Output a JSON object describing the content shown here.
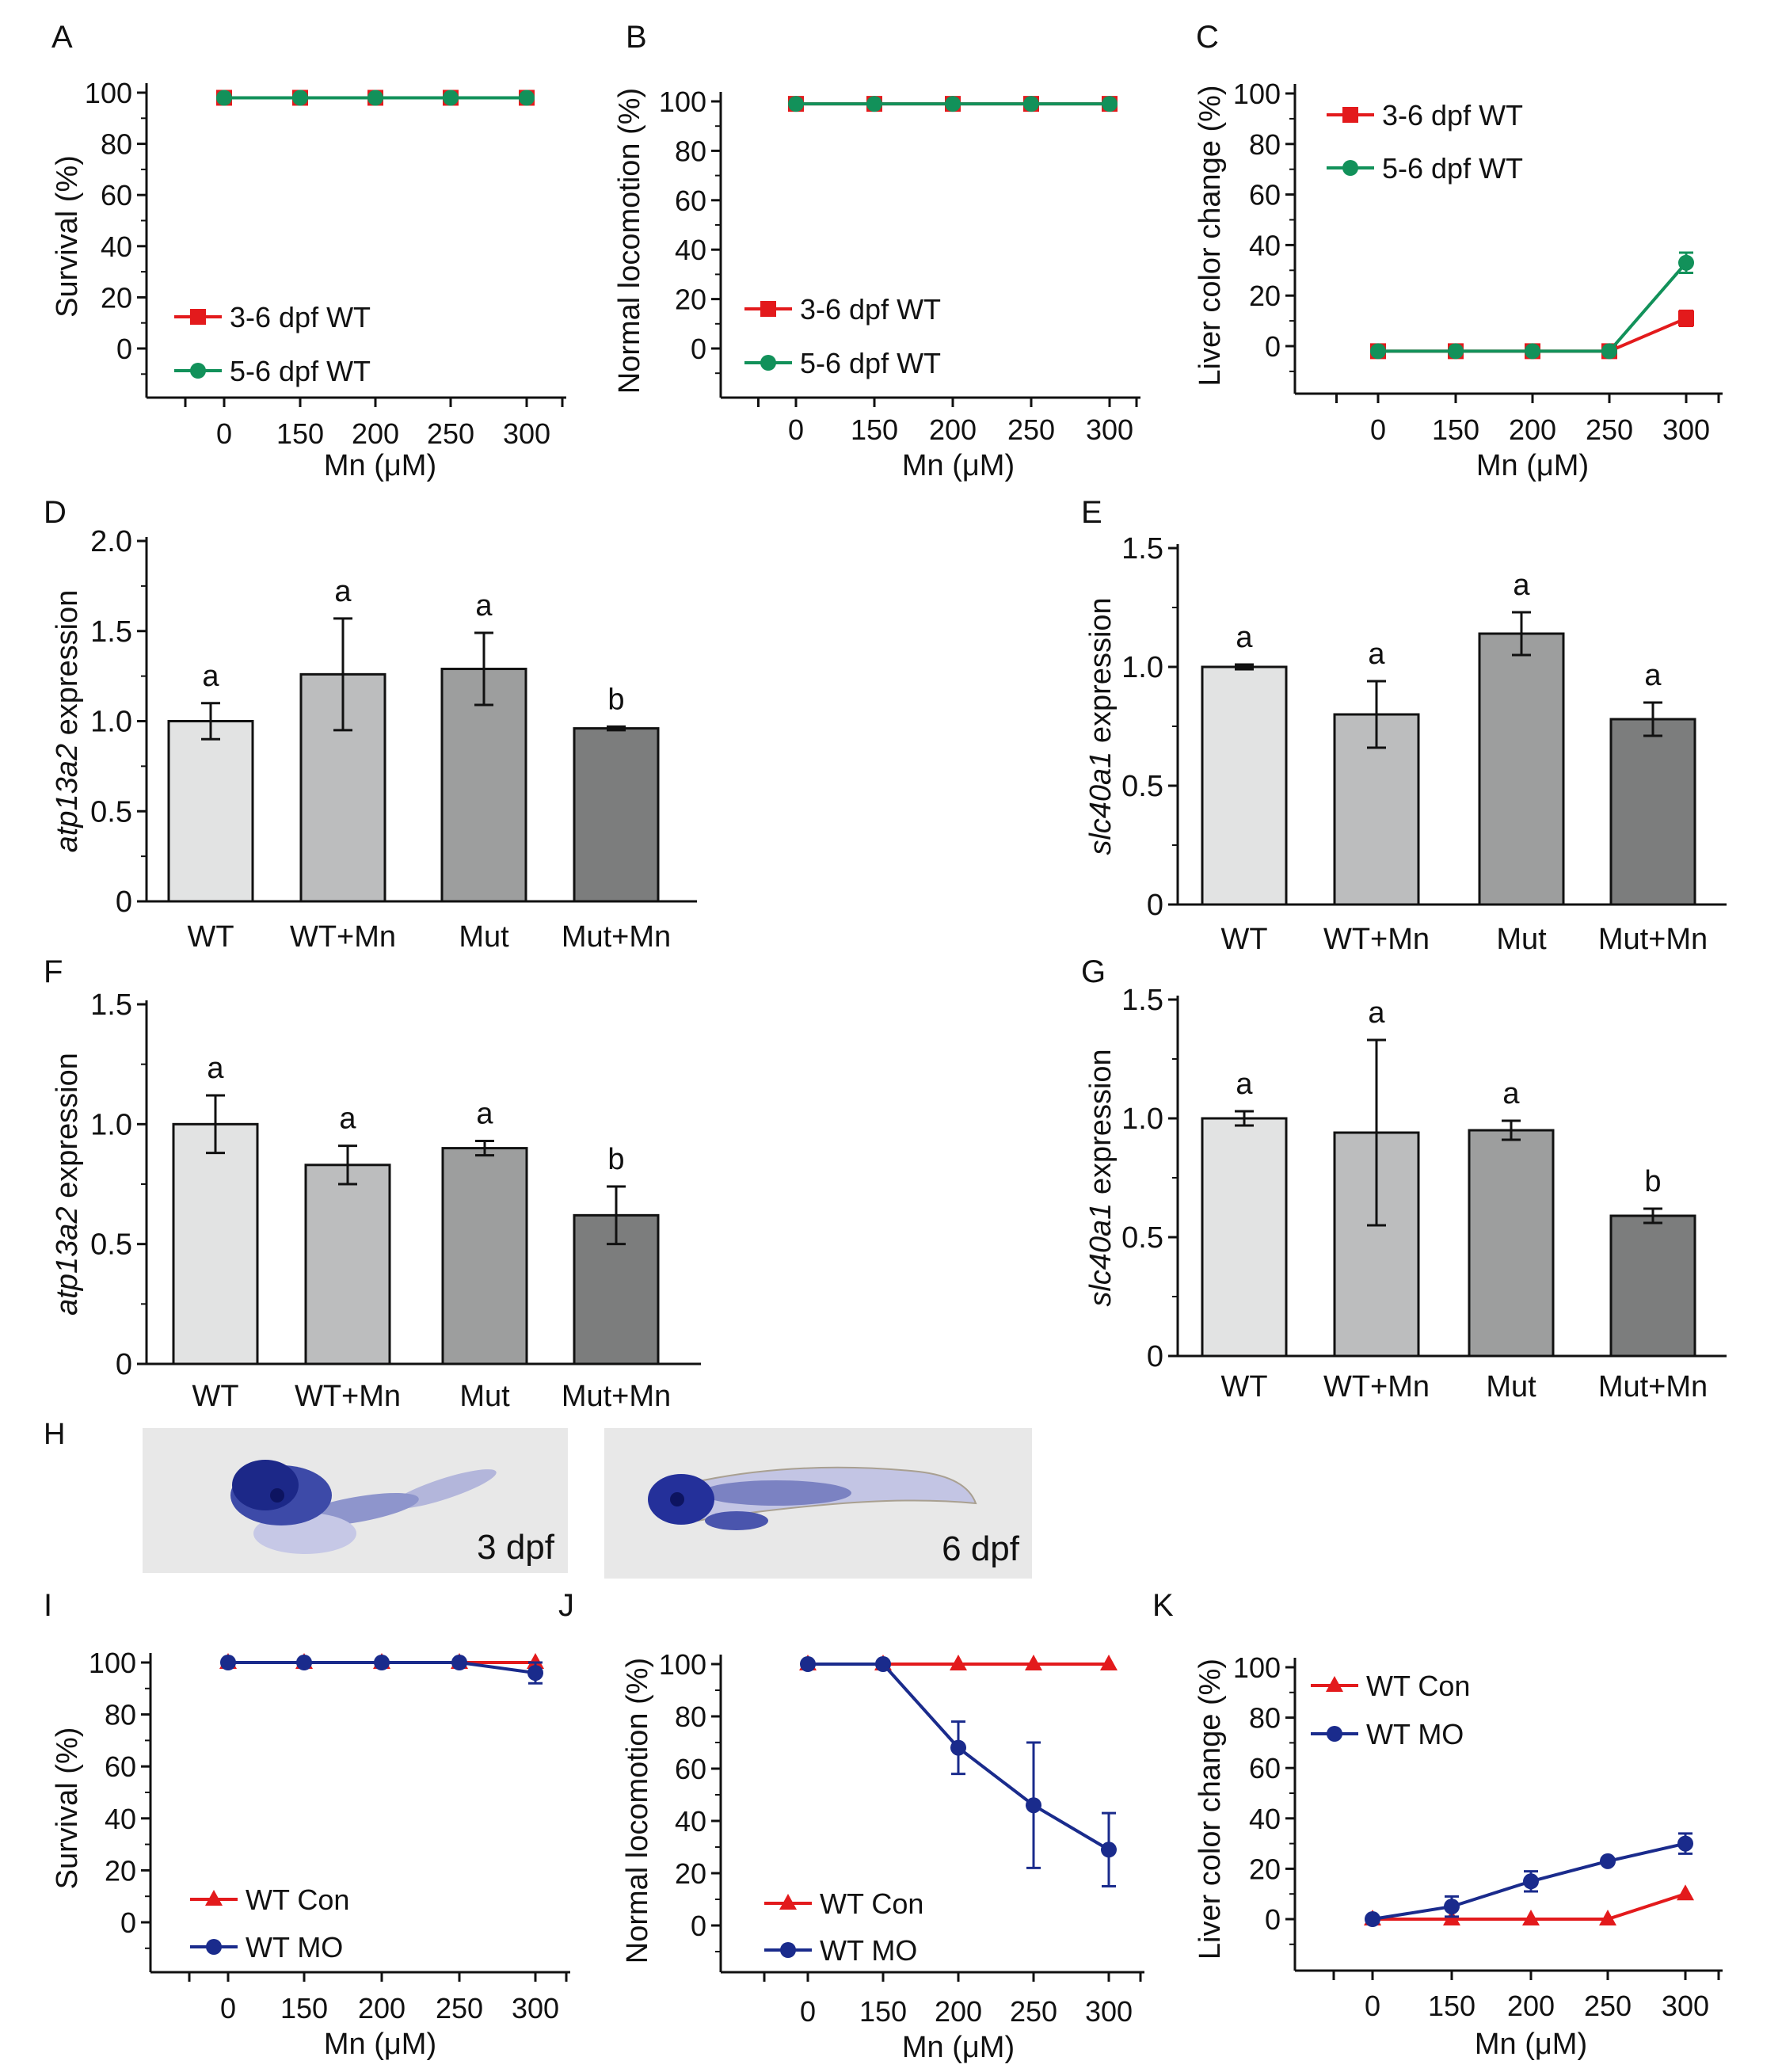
{
  "chart_data": [
    {
      "id": "panel-a",
      "panel_label": "A",
      "type": "line",
      "xlabel": "Mn (μM)",
      "ylabel": "Survival (%)",
      "x_ticks": [
        "0",
        "150",
        "200",
        "250",
        "300"
      ],
      "y_ticks": [
        "0",
        "20",
        "40",
        "60",
        "80",
        "100"
      ],
      "ylim": [
        -20,
        100
      ],
      "legend": "lower-left",
      "series": [
        {
          "name": "3-6 dpf WT",
          "color": "#e31a1c",
          "marker": "square",
          "values": [
            98,
            98,
            98,
            98,
            98
          ],
          "errors": [
            1,
            1,
            1,
            1,
            1
          ]
        },
        {
          "name": "5-6 dpf WT",
          "color": "#12915a",
          "marker": "circle",
          "values": [
            98,
            98,
            98,
            98,
            98
          ],
          "errors": [
            1,
            1,
            1,
            1,
            1
          ]
        }
      ]
    },
    {
      "id": "panel-b",
      "panel_label": "B",
      "type": "line",
      "xlabel": "Mn (μM)",
      "ylabel": "Normal locomotion (%)",
      "x_ticks": [
        "0",
        "150",
        "200",
        "250",
        "300"
      ],
      "y_ticks": [
        "0",
        "20",
        "40",
        "60",
        "80",
        "100"
      ],
      "ylim": [
        -20,
        100
      ],
      "legend": "lower-left",
      "series": [
        {
          "name": "3-6 dpf WT",
          "color": "#e31a1c",
          "marker": "square",
          "values": [
            99,
            99,
            99,
            99,
            99
          ],
          "errors": [
            1,
            1,
            1,
            1,
            1
          ]
        },
        {
          "name": "5-6 dpf WT",
          "color": "#12915a",
          "marker": "circle",
          "values": [
            99,
            99,
            99,
            99,
            99
          ],
          "errors": [
            1,
            1,
            1,
            1,
            1
          ]
        }
      ]
    },
    {
      "id": "panel-c",
      "panel_label": "C",
      "type": "line",
      "xlabel": "Mn (μM)",
      "ylabel": "Liver color change (%)",
      "x_ticks": [
        "0",
        "150",
        "200",
        "250",
        "300"
      ],
      "y_ticks": [
        "0",
        "20",
        "40",
        "60",
        "80",
        "100"
      ],
      "ylim": [
        -20,
        100
      ],
      "legend": "top-left",
      "series": [
        {
          "name": "3-6 dpf WT",
          "color": "#e31a1c",
          "marker": "square",
          "values": [
            -2,
            -2,
            -2,
            -2,
            11
          ],
          "errors": [
            0,
            0,
            0,
            0,
            3
          ]
        },
        {
          "name": "5-6 dpf WT",
          "color": "#12915a",
          "marker": "circle",
          "values": [
            -2,
            -2,
            -2,
            -2,
            33
          ],
          "errors": [
            0,
            0,
            0,
            0,
            4
          ]
        }
      ]
    },
    {
      "id": "panel-d",
      "panel_label": "D",
      "type": "bar",
      "ylabel_gene": "atp13a2",
      "ylabel_rest": " expression",
      "categories": [
        "WT",
        "WT+Mn",
        "Mut",
        "Mut+Mn"
      ],
      "values": [
        1.0,
        1.26,
        1.29,
        0.96
      ],
      "errors": [
        0.1,
        0.31,
        0.2,
        0.01
      ],
      "letters": [
        "a",
        "a",
        "a",
        "b"
      ],
      "colors": [
        "#e2e3e3",
        "#bcbdbe",
        "#9d9e9e",
        "#7c7d7d"
      ],
      "y_ticks": [
        "0",
        "0.5",
        "1.0",
        "1.5",
        "2.0"
      ],
      "ylim": [
        0,
        2.0
      ]
    },
    {
      "id": "panel-e",
      "panel_label": "E",
      "type": "bar",
      "ylabel_gene": "slc40a1",
      "ylabel_rest": " expression",
      "categories": [
        "WT",
        "WT+Mn",
        "Mut",
        "Mut+Mn"
      ],
      "values": [
        1.0,
        0.8,
        1.14,
        0.78
      ],
      "errors": [
        0.01,
        0.14,
        0.09,
        0.07
      ],
      "letters": [
        "a",
        "a",
        "a",
        "a"
      ],
      "colors": [
        "#e2e3e3",
        "#bcbdbe",
        "#9d9e9e",
        "#7c7d7d"
      ],
      "y_ticks": [
        "0",
        "0.5",
        "1.0",
        "1.5"
      ],
      "ylim": [
        0,
        1.5
      ]
    },
    {
      "id": "panel-f",
      "panel_label": "F",
      "type": "bar",
      "ylabel_gene": "atp13a2",
      "ylabel_rest": " expression",
      "categories": [
        "WT",
        "WT+Mn",
        "Mut",
        "Mut+Mn"
      ],
      "values": [
        1.0,
        0.83,
        0.9,
        0.62
      ],
      "errors": [
        0.12,
        0.08,
        0.03,
        0.12
      ],
      "letters": [
        "a",
        "a",
        "a",
        "b"
      ],
      "colors": [
        "#e2e3e3",
        "#bcbdbe",
        "#9d9e9e",
        "#7c7d7d"
      ],
      "y_ticks": [
        "0",
        "0.5",
        "1.0",
        "1.5"
      ],
      "ylim": [
        0,
        1.5
      ]
    },
    {
      "id": "panel-g",
      "panel_label": "G",
      "type": "bar",
      "ylabel_gene": "slc40a1",
      "ylabel_rest": " expression",
      "categories": [
        "WT",
        "WT+Mn",
        "Mut",
        "Mut+Mn"
      ],
      "values": [
        1.0,
        0.94,
        0.95,
        0.59
      ],
      "errors": [
        0.03,
        0.39,
        0.04,
        0.03
      ],
      "letters": [
        "a",
        "a",
        "a",
        "b"
      ],
      "colors": [
        "#e2e3e3",
        "#bcbdbe",
        "#9d9e9e",
        "#7c7d7d"
      ],
      "y_ticks": [
        "0",
        "0.5",
        "1.0",
        "1.5"
      ],
      "ylim": [
        0,
        1.5
      ]
    },
    {
      "id": "panel-i",
      "panel_label": "I",
      "type": "line",
      "xlabel": "Mn (μM)",
      "ylabel": "Survival (%)",
      "x_ticks": [
        "0",
        "150",
        "200",
        "250",
        "300"
      ],
      "y_ticks": [
        "0",
        "20",
        "40",
        "60",
        "80",
        "100"
      ],
      "ylim": [
        -20,
        100
      ],
      "legend": "lower-left",
      "series": [
        {
          "name": "WT Con",
          "color": "#e31a1c",
          "marker": "triangle",
          "values": [
            100,
            100,
            100,
            100,
            100
          ],
          "errors": [
            0,
            0,
            0,
            0,
            0
          ]
        },
        {
          "name": "WT MO",
          "color": "#1a2b8c",
          "marker": "circle",
          "values": [
            100,
            100,
            100,
            100,
            96
          ],
          "errors": [
            0,
            0,
            0,
            0,
            4
          ]
        }
      ]
    },
    {
      "id": "panel-j",
      "panel_label": "J",
      "type": "line",
      "xlabel": "Mn (μM)",
      "ylabel": "Normal locomotion (%)",
      "x_ticks": [
        "0",
        "150",
        "200",
        "250",
        "300"
      ],
      "y_ticks": [
        "0",
        "20",
        "40",
        "60",
        "80",
        "100"
      ],
      "ylim": [
        -20,
        100
      ],
      "legend": "lower-left",
      "series": [
        {
          "name": "WT Con",
          "color": "#e31a1c",
          "marker": "triangle",
          "values": [
            100,
            100,
            100,
            100,
            100
          ],
          "errors": [
            0,
            0,
            0,
            0,
            0
          ]
        },
        {
          "name": "WT MO",
          "color": "#1a2b8c",
          "marker": "circle",
          "values": [
            100,
            100,
            68,
            46,
            29
          ],
          "errors": [
            0,
            0,
            10,
            24,
            14
          ]
        }
      ]
    },
    {
      "id": "panel-k",
      "panel_label": "K",
      "type": "line",
      "xlabel": "Mn (μM)",
      "ylabel": "Liver color change (%)",
      "x_ticks": [
        "0",
        "150",
        "200",
        "250",
        "300"
      ],
      "y_ticks": [
        "0",
        "20",
        "40",
        "60",
        "80",
        "100"
      ],
      "ylim": [
        -20,
        100
      ],
      "legend": "top-left",
      "series": [
        {
          "name": "WT Con",
          "color": "#e31a1c",
          "marker": "triangle",
          "values": [
            0,
            0,
            0,
            0,
            10
          ],
          "errors": [
            0,
            0,
            0,
            0,
            0
          ]
        },
        {
          "name": "WT MO",
          "color": "#1a2b8c",
          "marker": "circle",
          "values": [
            0,
            5,
            15,
            23,
            30
          ],
          "errors": [
            0,
            4,
            4,
            1,
            4
          ]
        }
      ]
    }
  ],
  "panel_h": {
    "panel_label": "H",
    "images": [
      {
        "caption": "3 dpf"
      },
      {
        "caption": "6 dpf"
      }
    ]
  }
}
